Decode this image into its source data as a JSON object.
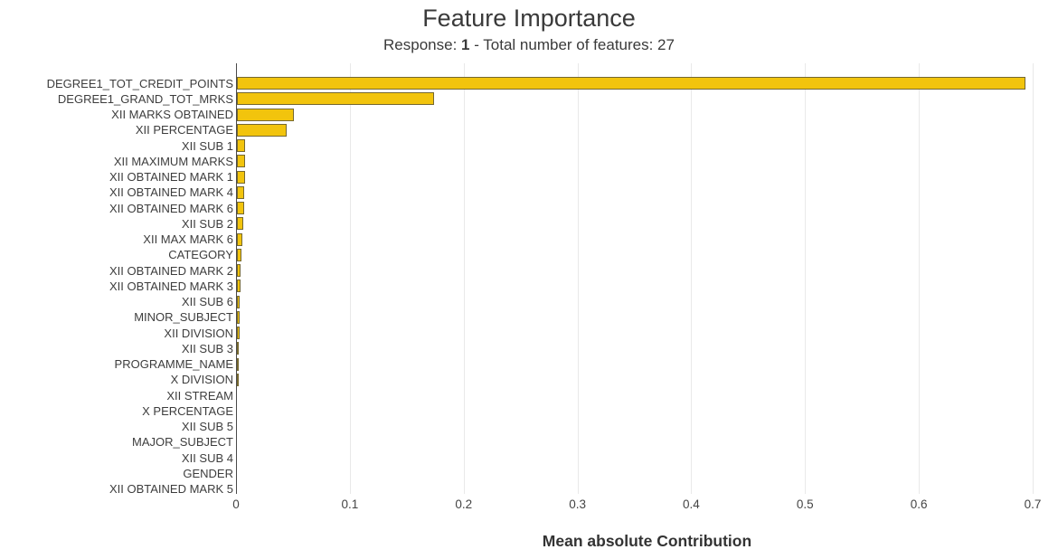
{
  "chart_data": {
    "type": "bar",
    "orientation": "horizontal",
    "title": "Feature Importance",
    "subtitle": {
      "prefix": "Response: ",
      "response": "1",
      "suffix": " - Total number of features: 27"
    },
    "xlabel": "Mean absolute Contribution",
    "xlim": [
      0,
      0.7
    ],
    "xticks": [
      "0",
      "0.1",
      "0.2",
      "0.3",
      "0.4",
      "0.5",
      "0.6",
      "0.7"
    ],
    "grid": {
      "vertical": true,
      "horizontal": false,
      "color": "#e9e9e9"
    },
    "legend": "none",
    "bar_color": "#f2c40d",
    "bar_border_color": "#5f5837",
    "categories": [
      "DEGREE1_TOT_CREDIT_POINTS",
      "DEGREE1_GRAND_TOT_MRKS",
      "XII MARKS OBTAINED",
      "XII PERCENTAGE",
      "XII SUB 1",
      "XII MAXIMUM MARKS",
      "XII OBTAINED MARK 1",
      "XII OBTAINED MARK 4",
      "XII OBTAINED MARK 6",
      "XII SUB 2",
      "XII MAX MARK 6",
      "CATEGORY",
      "XII OBTAINED MARK 2",
      "XII OBTAINED MARK 3",
      "XII SUB 6",
      "MINOR_SUBJECT",
      "XII DIVISION",
      "XII SUB 3",
      "PROGRAMME_NAME",
      "X DIVISION",
      "XII STREAM",
      "X PERCENTAGE",
      "XII SUB 5",
      "MAJOR_SUBJECT",
      "XII SUB 4",
      "GENDER",
      "XII OBTAINED MARK 5"
    ],
    "values": [
      0.693,
      0.173,
      0.05,
      0.044,
      0.0072,
      0.007,
      0.0068,
      0.0066,
      0.006,
      0.0055,
      0.005,
      0.004,
      0.0032,
      0.003,
      0.0026,
      0.0024,
      0.002,
      0.0016,
      0.0012,
      0.0009,
      0.0006,
      0.0005,
      0.0004,
      0.0003,
      0.0002,
      0.0002,
      0.0001
    ]
  }
}
